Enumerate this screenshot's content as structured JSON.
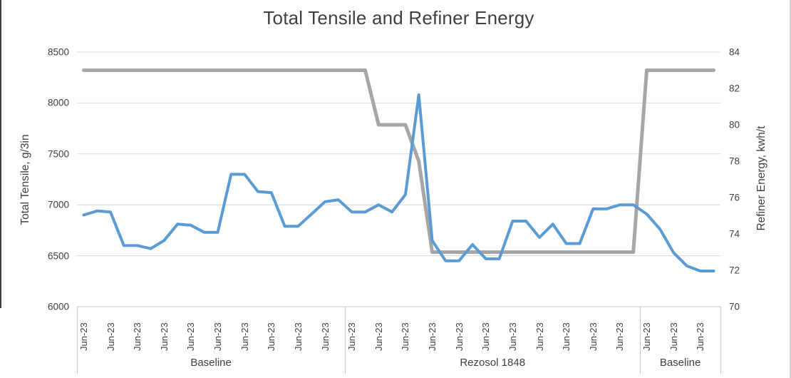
{
  "title": "Total Tensile and Refiner Energy",
  "chart_data": {
    "type": "line",
    "title": "Total Tensile and Refiner Energy",
    "grid": "horizontal-major-on",
    "legend": "none",
    "x_axis": {
      "labels": [
        "Jun-23",
        "Jun-23",
        "Jun-23",
        "Jun-23",
        "Jun-23",
        "Jun-23",
        "Jun-23",
        "Jun-23",
        "Jun-23",
        "Jun-23",
        "Jun-23",
        "Jun-23",
        "Jun-23",
        "Jun-23",
        "Jun-23",
        "Jun-23",
        "Jun-23",
        "Jun-23",
        "Jun-23",
        "Jun-23",
        "Jun-23",
        "Jun-23",
        "Jun-23",
        "Jun-23"
      ],
      "label_interval": "one label per 2 data points",
      "groups": [
        {
          "label": "Baseline",
          "points": 20
        },
        {
          "label": "Rezosol 1848",
          "points": 22
        },
        {
          "label": "Baseline",
          "points": 6
        }
      ]
    },
    "y_left": {
      "title": "Total Tensile, g/3in",
      "min": 6000,
      "max": 8500,
      "ticks": [
        8500,
        8000,
        7500,
        7000,
        6500,
        6000
      ]
    },
    "y_right": {
      "title": "Refiner Energy, kwh/t",
      "min": 70,
      "max": 84,
      "ticks": [
        84,
        82,
        80,
        78,
        76,
        74,
        72,
        70
      ]
    },
    "series": [
      {
        "name": "Refiner Energy",
        "axis": "right",
        "color": "#a6a6a6",
        "width": 5,
        "values": [
          83,
          83,
          83,
          83,
          83,
          83,
          83,
          83,
          83,
          83,
          83,
          83,
          83,
          83,
          83,
          83,
          83,
          83,
          83,
          83,
          83,
          83,
          80,
          80,
          80,
          78,
          73,
          73,
          73,
          73,
          73,
          73,
          73,
          73,
          73,
          73,
          73,
          73,
          73,
          73,
          73,
          73,
          83,
          83,
          83,
          83,
          83,
          83
        ]
      },
      {
        "name": "Total Tensile",
        "axis": "left",
        "color": "#5b9bd5",
        "width": 4,
        "values": [
          6900,
          6940,
          6930,
          6600,
          6600,
          6570,
          6650,
          6810,
          6800,
          6730,
          6730,
          7300,
          7300,
          7130,
          7120,
          6790,
          6790,
          6910,
          7030,
          7050,
          6930,
          6930,
          7000,
          6930,
          7100,
          8080,
          6650,
          6450,
          6450,
          6610,
          6470,
          6470,
          6840,
          6840,
          6680,
          6810,
          6620,
          6620,
          6960,
          6960,
          7000,
          7000,
          6910,
          6760,
          6530,
          6400,
          6350,
          6350
        ]
      }
    ],
    "colors": {
      "gridline": "#d9d9d9",
      "axis_line": "#c9c9c9",
      "text": "#404040",
      "tensile_line": "#5b9bd5",
      "refiner_line": "#a6a6a6"
    }
  }
}
